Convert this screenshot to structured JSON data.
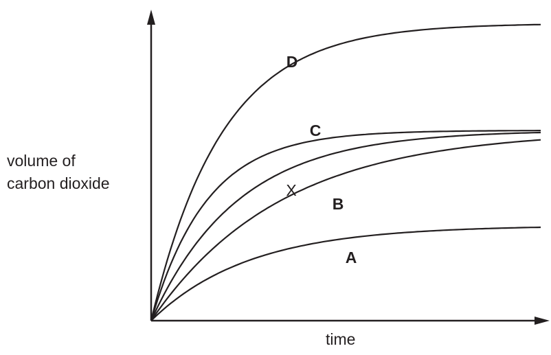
{
  "chart_data": {
    "type": "line",
    "xlabel": "time",
    "ylabel": [
      "volume of",
      "carbon dioxide"
    ],
    "grid": false,
    "legend": "none",
    "series": [
      {
        "name": "D",
        "bold": true,
        "final_volume": 1.0,
        "rate": 5.5,
        "end_time": 1.0
      },
      {
        "name": "C",
        "bold": true,
        "final_volume": 0.64,
        "rate": 7.0,
        "end_time": 1.0
      },
      {
        "name": "X",
        "bold": false,
        "final_volume": 0.64,
        "rate": 4.5,
        "end_time": 1.0
      },
      {
        "name": "B",
        "bold": true,
        "final_volume": 0.64,
        "rate": 3.0,
        "end_time": 1.0
      },
      {
        "name": "A",
        "bold": true,
        "final_volume": 0.32,
        "rate": 4.0,
        "end_time": 1.0
      }
    ]
  }
}
